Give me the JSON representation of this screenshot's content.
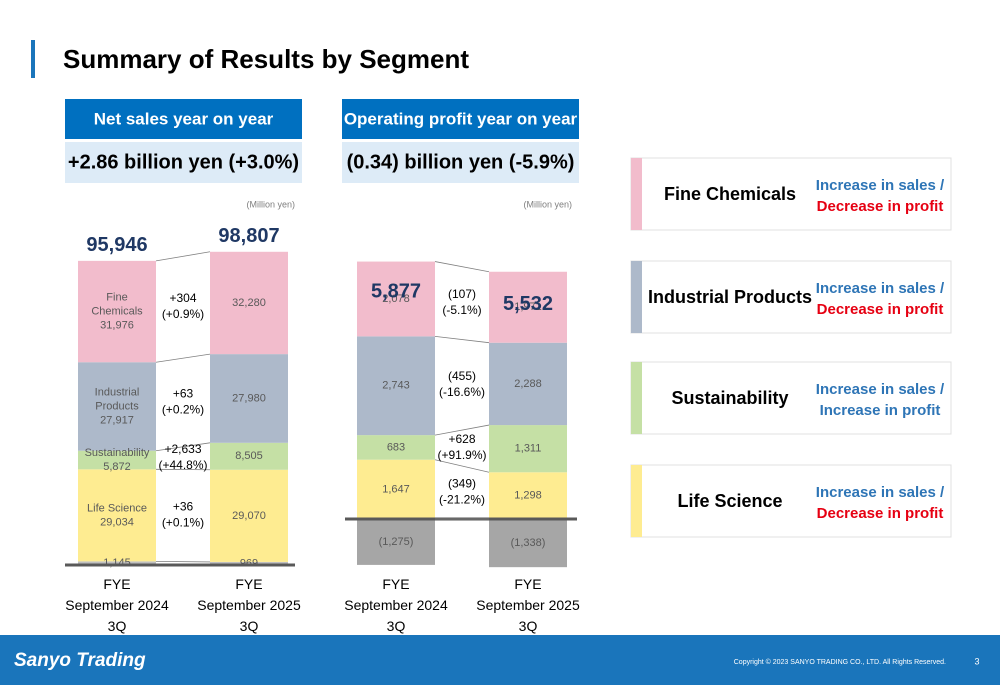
{
  "title": "Summary of Results by Segment",
  "chart_data": [
    {
      "type": "stacked_bar",
      "header": "Net sales year on year",
      "summary": "+2.86 billion yen (+3.0%)",
      "unit": "(Million yen)",
      "categories": [
        "FYE\nSeptember 2024\n3Q",
        "FYE\nSeptember 2025\n3Q"
      ],
      "totals": [
        95946,
        98807
      ],
      "total_labels": [
        "95,946",
        "98,807"
      ],
      "name_in_bar": [
        true,
        false
      ],
      "ylim": [
        0,
        100000
      ],
      "series": [
        {
          "name": "Fine Chemicals",
          "color": "#f2bccc",
          "values": [
            31976,
            32280
          ],
          "value_labels": [
            "31,976",
            "32,280"
          ]
        },
        {
          "name": "Industrial Products",
          "color": "#adb9ca",
          "values": [
            27917,
            27980
          ],
          "value_labels": [
            "27,917",
            "27,980"
          ]
        },
        {
          "name": "Sustainability",
          "color": "#c5e0a5",
          "values": [
            5872,
            8505
          ],
          "value_labels": [
            "5,872",
            "8,505"
          ]
        },
        {
          "name": "Life Science",
          "color": "#feec91",
          "values": [
            29034,
            29070
          ],
          "value_labels": [
            "29,034",
            "29,070"
          ]
        },
        {
          "color": "#bfbfbf",
          "values": [
            1145,
            969
          ],
          "value_labels": [
            "1,145",
            "969"
          ]
        }
      ],
      "changes": [
        "+304\n(+0.9%)",
        "+63\n(+0.2%)",
        "+2,633\n(+44.8%)",
        "+36\n(+0.1%)"
      ]
    },
    {
      "type": "stacked_bar",
      "header": "Operating profit year on year",
      "summary": "(0.34) billion yen (-5.9%)",
      "unit": "(Million yen)",
      "categories": [
        "FYE\nSeptember 2024\n3Q",
        "FYE\nSeptember 2025\n3Q"
      ],
      "totals": [
        5877,
        5532
      ],
      "total_labels": [
        "5,877",
        "5,532"
      ],
      "name_in_bar": [
        false,
        false
      ],
      "ylim": [
        -1400,
        7200
      ],
      "series": [
        {
          "name": "Fine Chemicals",
          "color": "#f2bccc",
          "values": [
            2078,
            1971
          ],
          "value_labels": [
            "2,078",
            "1,971"
          ]
        },
        {
          "name": "Industrial Products",
          "color": "#adb9ca",
          "values": [
            2743,
            2288
          ],
          "value_labels": [
            "2,743",
            "2,288"
          ]
        },
        {
          "name": "Sustainability",
          "color": "#c5e0a5",
          "values": [
            683,
            1311
          ],
          "value_labels": [
            "683",
            "1,311"
          ]
        },
        {
          "name": "Life Science",
          "color": "#feec91",
          "values": [
            1647,
            1298
          ],
          "value_labels": [
            "1,647",
            "1,298"
          ]
        },
        {
          "color": "#a6a6a6",
          "values": [
            -1275,
            -1338
          ],
          "value_labels": [
            "(1,275)",
            "(1,338)"
          ]
        }
      ],
      "changes": [
        "(107)\n(-5.1%)",
        "(455)\n(-16.6%)",
        "+628\n(+91.9%)",
        "(349)\n(-21.2%)"
      ]
    }
  ],
  "segment_notes": [
    {
      "sales": "Increase in sales /",
      "profit": "Decrease in profit",
      "sales_color": "#2e75b6",
      "profit_color": "#e60012"
    },
    {
      "sales": "Increase in sales /",
      "profit": "Decrease in profit",
      "sales_color": "#2e75b6",
      "profit_color": "#e60012"
    },
    {
      "sales": "Increase in sales /",
      "profit": "Increase in profit",
      "sales_color": "#2e75b6",
      "profit_color": "#2e75b6"
    },
    {
      "sales": "Increase in sales /",
      "profit": "Decrease in profit",
      "sales_color": "#2e75b6",
      "profit_color": "#e60012"
    }
  ],
  "footer": {
    "logo": "Sanyo Trading",
    "copyright": "Copyright © 2023 SANYO TRADING CO., LTD. All Rights Reserved.",
    "page": "3"
  }
}
